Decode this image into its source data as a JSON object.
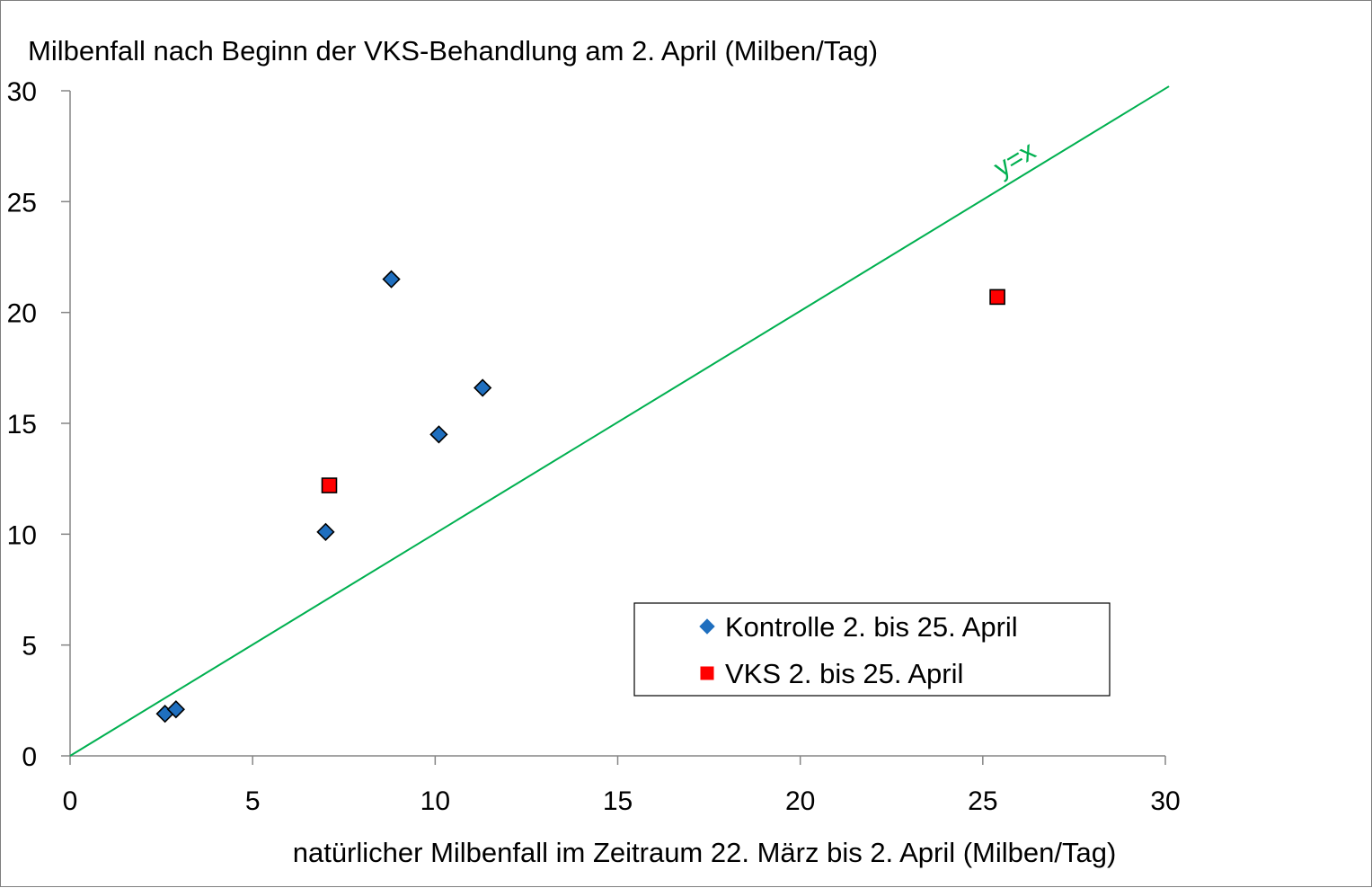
{
  "chart_data": {
    "type": "scatter",
    "title": "Milbenfall nach Beginn der VKS-Behandlung am 2. April (Milben/Tag)",
    "xlabel": "natürlicher Milbenfall im Zeitraum 22. März bis 2. April (Milben/Tag)",
    "ylabel": "",
    "xlim": [
      0,
      30
    ],
    "ylim": [
      0,
      30
    ],
    "xticks": [
      "0",
      "5",
      "10",
      "15",
      "20",
      "25",
      "30"
    ],
    "yticks": [
      "0",
      "5",
      "10",
      "15",
      "20",
      "25",
      "30"
    ],
    "grid": false,
    "legend_position": "bottom-right",
    "series": [
      {
        "name": "Kontrolle 2. bis 25. April",
        "marker": "diamond",
        "color": "#1f6fbf",
        "points": [
          {
            "x": 2.6,
            "y": 1.9
          },
          {
            "x": 2.9,
            "y": 2.1
          },
          {
            "x": 7.0,
            "y": 10.1
          },
          {
            "x": 8.8,
            "y": 21.5
          },
          {
            "x": 10.1,
            "y": 14.5
          },
          {
            "x": 11.3,
            "y": 16.6
          }
        ]
      },
      {
        "name": "VKS 2. bis 25. April",
        "marker": "square",
        "color": "#ff0000",
        "points": [
          {
            "x": 7.1,
            "y": 12.2
          },
          {
            "x": 25.4,
            "y": 20.7
          }
        ]
      }
    ],
    "reference_line": {
      "label": "y=x",
      "color": "#00b050",
      "from": {
        "x": 0,
        "y": 0
      },
      "to": {
        "x": 30.1,
        "y": 30.2
      }
    }
  }
}
